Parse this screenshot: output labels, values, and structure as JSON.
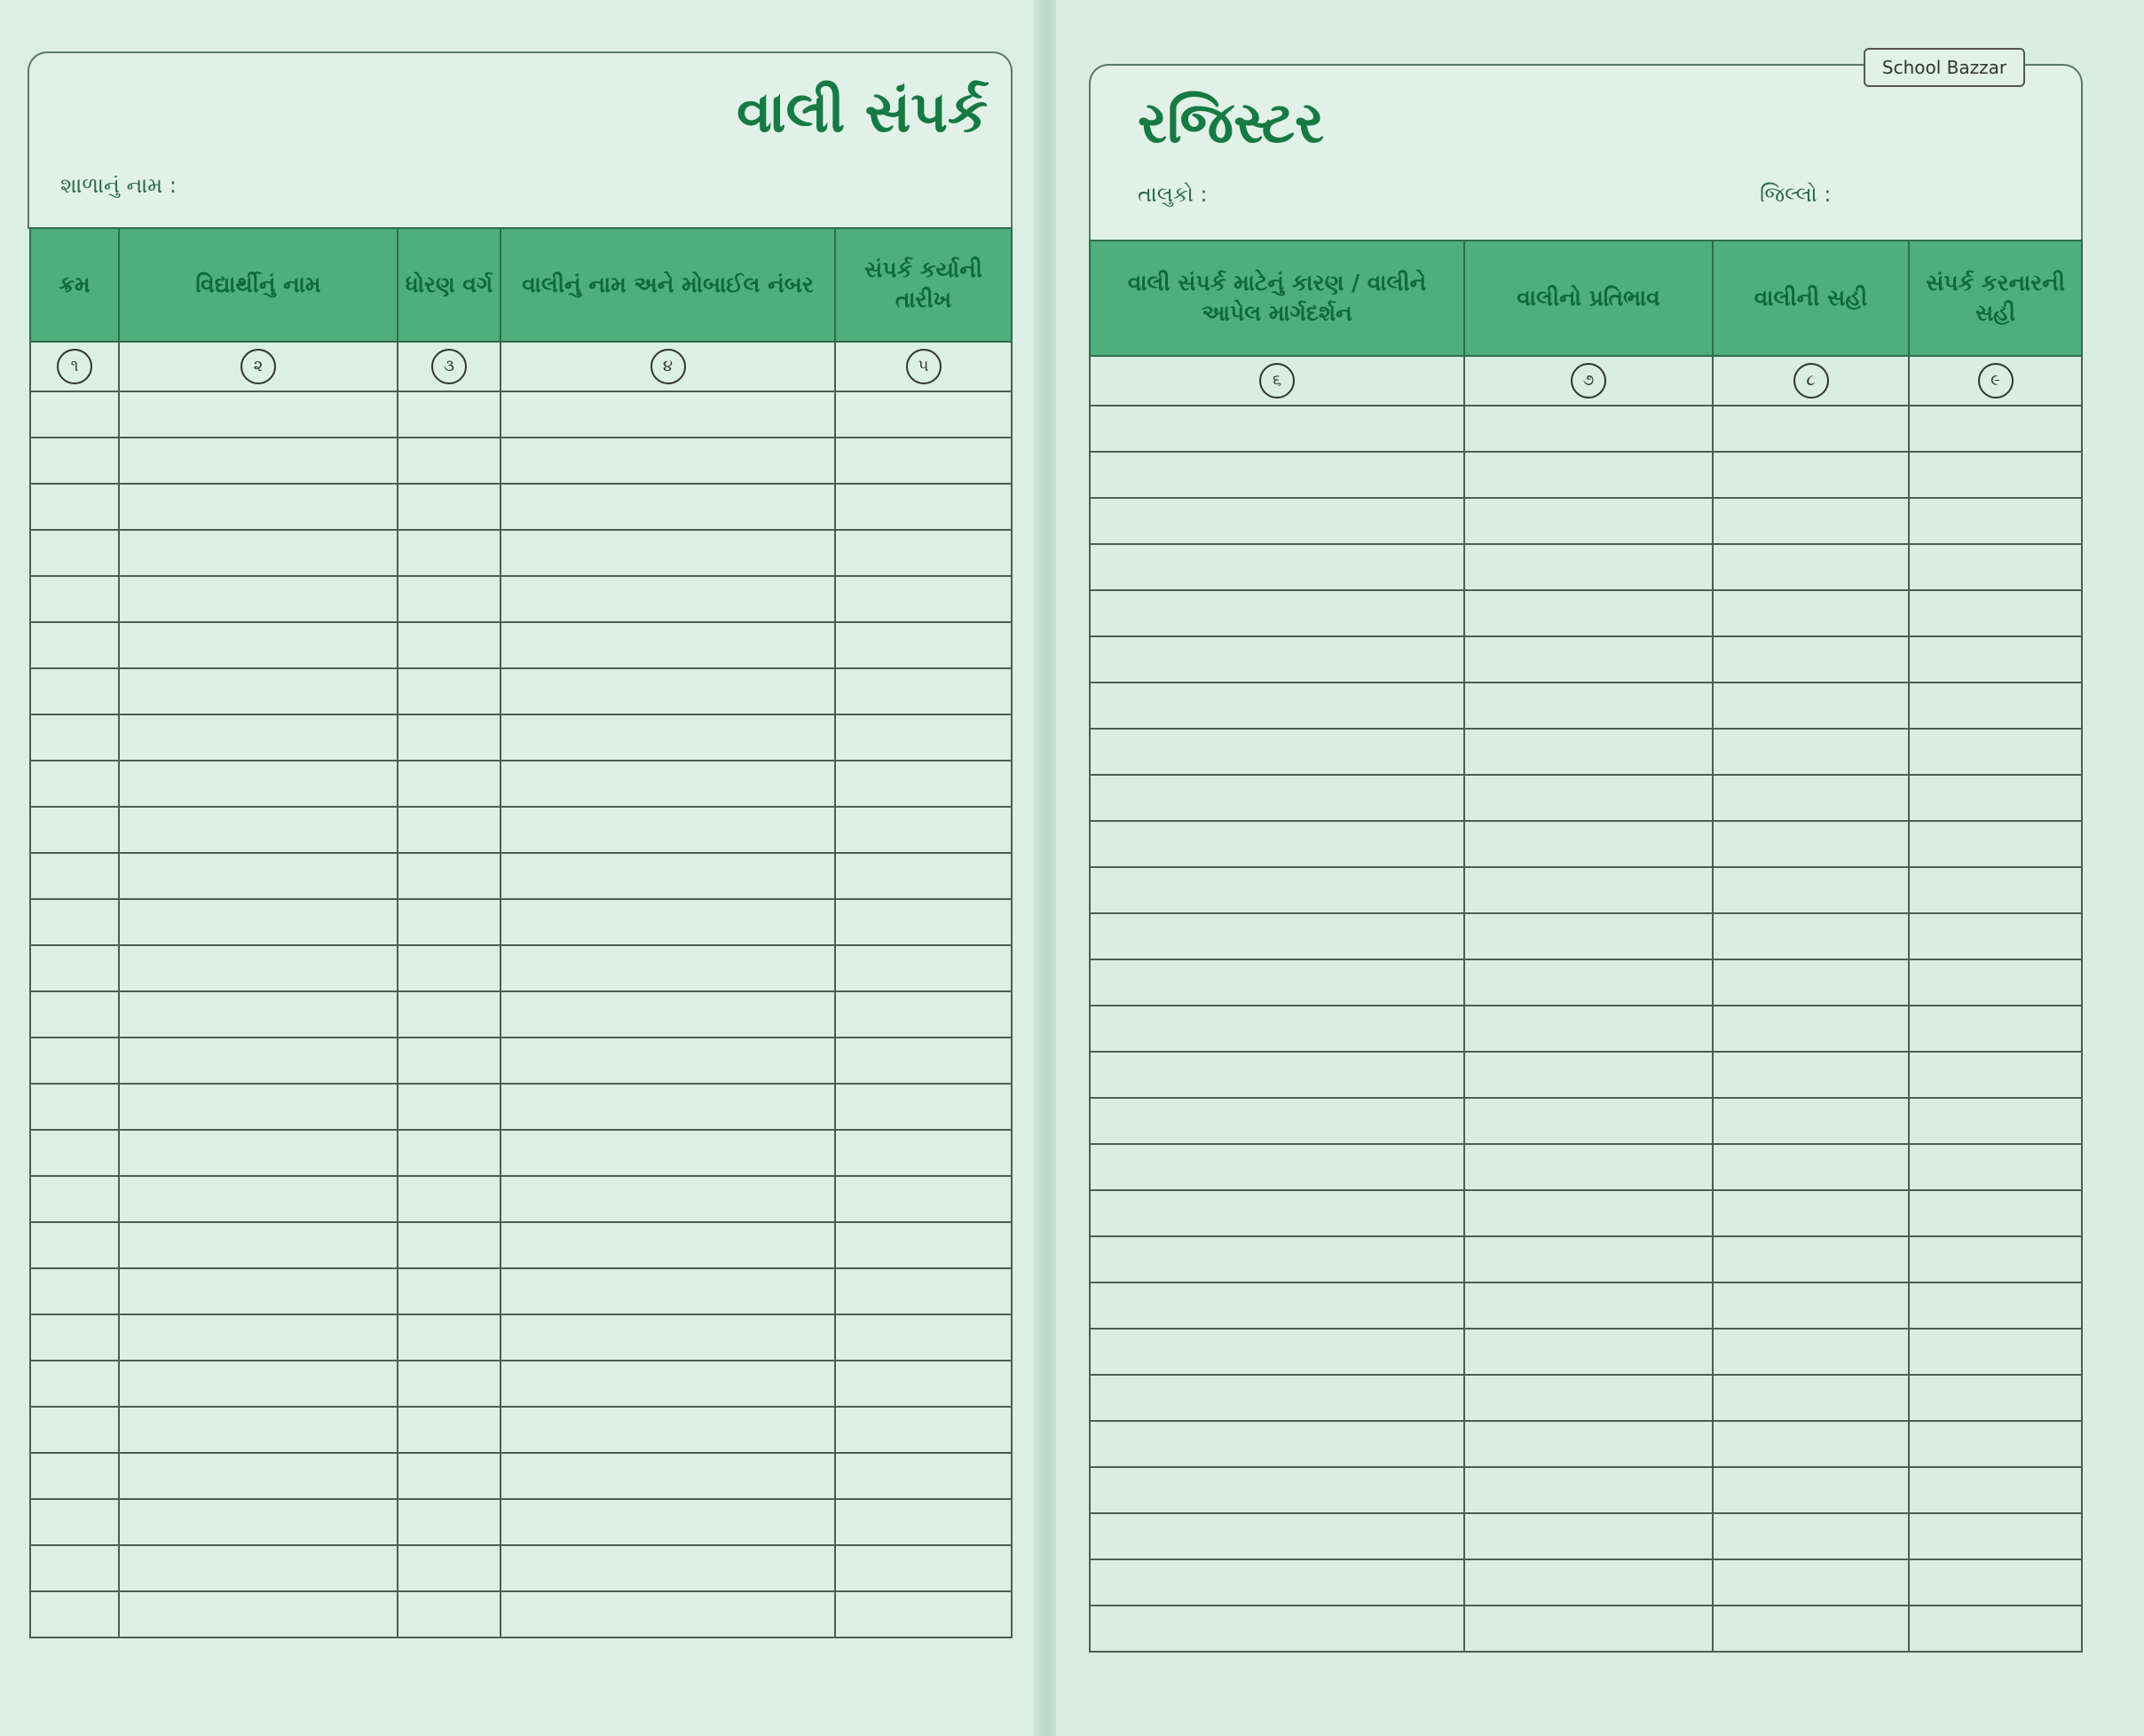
{
  "left": {
    "title": "વાલી સંપર્ક",
    "school_label": "શાળાનું નામ :",
    "columns": [
      "ક્રમ",
      "વિદ્યાર્થીનું નામ",
      "ધોરણ વર્ગ",
      "વાલીનું નામ અને મોબાઈલ નંબર",
      "સંપર્ક કર્યાની તારીખ"
    ],
    "numbers": [
      "૧",
      "૨",
      "૩",
      "૪",
      "૫"
    ]
  },
  "right": {
    "title": "રજિસ્ટર",
    "taluka_label": "તાલુકો :",
    "district_label": "જિલ્લો :",
    "logo": "School Bazzar",
    "columns": [
      "વાલી સંપર્ક માટેનું કારણ / વાલીને આપેલ માર્ગદર્શન",
      "વાલીનો પ્રતિભાવ",
      "વાલીની સહી",
      "સંપર્ક કરનારની સહી"
    ],
    "numbers": [
      "૬",
      "૭",
      "૮",
      "૯"
    ]
  },
  "colors": {
    "header_green": "#4fae7e",
    "text_green": "#167a42",
    "paper": "#dcefe4"
  }
}
